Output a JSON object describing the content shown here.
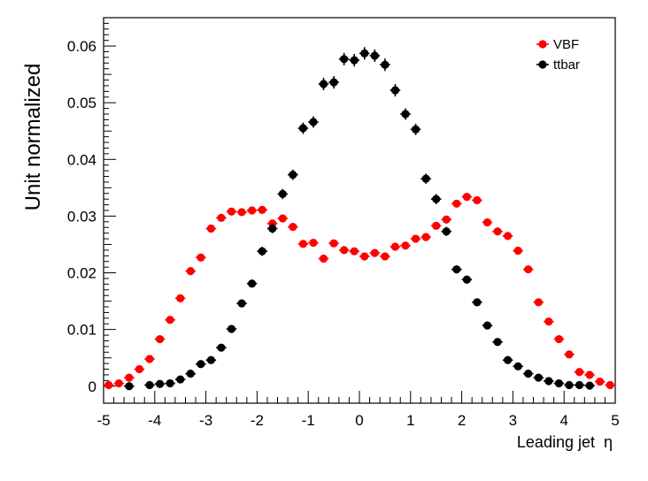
{
  "chart_data": {
    "type": "scatter",
    "xlabel": "Leading jet  η",
    "ylabel": "Unit normalized",
    "xlim": [
      -5,
      5
    ],
    "ylim": [
      -0.003,
      0.065
    ],
    "x_ticks": [
      "-5",
      "-4",
      "-3",
      "-2",
      "-1",
      "0",
      "1",
      "2",
      "3",
      "4",
      "5"
    ],
    "y_ticks": [
      "0",
      "0.01",
      "0.02",
      "0.03",
      "0.04",
      "0.05",
      "0.06"
    ],
    "legend_position": "top-right",
    "series": [
      {
        "name": "VBF",
        "color": "#ff0000",
        "x": [
          -4.9,
          -4.7,
          -4.5,
          -4.3,
          -4.1,
          -3.9,
          -3.7,
          -3.5,
          -3.3,
          -3.1,
          -2.9,
          -2.7,
          -2.5,
          -2.3,
          -2.1,
          -1.9,
          -1.7,
          -1.5,
          -1.3,
          -1.1,
          -0.9,
          -0.7,
          -0.5,
          -0.3,
          -0.1,
          0.1,
          0.3,
          0.5,
          0.7,
          0.9,
          1.1,
          1.3,
          1.5,
          1.7,
          1.9,
          2.1,
          2.3,
          2.5,
          2.7,
          2.9,
          3.1,
          3.3,
          3.5,
          3.7,
          3.9,
          4.1,
          4.3,
          4.5,
          4.7,
          4.9
        ],
        "y": [
          0.0002,
          0.0005,
          0.0015,
          0.003,
          0.0048,
          0.0083,
          0.0117,
          0.0155,
          0.0203,
          0.0227,
          0.0278,
          0.0297,
          0.0308,
          0.0307,
          0.031,
          0.0311,
          0.0287,
          0.0296,
          0.0281,
          0.0251,
          0.0253,
          0.0225,
          0.0252,
          0.024,
          0.0238,
          0.0229,
          0.0235,
          0.0229,
          0.0246,
          0.0248,
          0.026,
          0.0263,
          0.0283,
          0.0294,
          0.0322,
          0.0334,
          0.0328,
          0.0289,
          0.0273,
          0.0265,
          0.0239,
          0.0206,
          0.0148,
          0.0114,
          0.0083,
          0.0056,
          0.0025,
          0.002,
          0.0008,
          0.0002
        ],
        "yerr": [
          0.0001,
          0.0002,
          0.0003,
          0.0004,
          0.0004,
          0.0004,
          0.0004,
          0.0004,
          0.0004,
          0.0004,
          0.0005,
          0.0005,
          0.0005,
          0.0005,
          0.0005,
          0.0005,
          0.0005,
          0.0005,
          0.0005,
          0.0005,
          0.0005,
          0.0005,
          0.0005,
          0.0005,
          0.0005,
          0.0005,
          0.0005,
          0.0005,
          0.0005,
          0.0005,
          0.0005,
          0.0005,
          0.0005,
          0.0005,
          0.0005,
          0.0005,
          0.0005,
          0.0005,
          0.0005,
          0.0005,
          0.0005,
          0.0004,
          0.0004,
          0.0004,
          0.0004,
          0.0004,
          0.0003,
          0.0003,
          0.0002,
          0.0001
        ]
      },
      {
        "name": "ttbar",
        "color": "#000000",
        "x": [
          -4.5,
          -4.1,
          -3.9,
          -3.7,
          -3.5,
          -3.3,
          -3.1,
          -2.9,
          -2.7,
          -2.5,
          -2.3,
          -2.1,
          -1.9,
          -1.7,
          -1.5,
          -1.3,
          -1.1,
          -0.9,
          -0.7,
          -0.5,
          -0.3,
          -0.1,
          0.1,
          0.3,
          0.5,
          0.7,
          0.9,
          1.1,
          1.3,
          1.5,
          1.7,
          1.9,
          2.1,
          2.3,
          2.5,
          2.7,
          2.9,
          3.1,
          3.3,
          3.5,
          3.7,
          3.9,
          4.1,
          4.3,
          4.5
        ],
        "y": [
          0.0,
          0.0002,
          0.0004,
          0.0005,
          0.0012,
          0.0022,
          0.0039,
          0.0046,
          0.0068,
          0.0101,
          0.0146,
          0.0181,
          0.0238,
          0.0278,
          0.0339,
          0.0373,
          0.0455,
          0.0466,
          0.0533,
          0.0536,
          0.0577,
          0.0575,
          0.0587,
          0.0583,
          0.0567,
          0.0522,
          0.048,
          0.0453,
          0.0366,
          0.033,
          0.0273,
          0.0206,
          0.0188,
          0.0148,
          0.0107,
          0.0078,
          0.0046,
          0.0035,
          0.0022,
          0.0015,
          0.0009,
          0.0005,
          0.0002,
          0.0002,
          0.0001
        ],
        "yerr": [
          0.0002,
          0.0002,
          0.0003,
          0.0003,
          0.0004,
          0.0004,
          0.0005,
          0.0005,
          0.0006,
          0.0006,
          0.0006,
          0.0007,
          0.0008,
          0.0008,
          0.0009,
          0.0009,
          0.001,
          0.001,
          0.0011,
          0.0011,
          0.0011,
          0.0011,
          0.0011,
          0.0011,
          0.0011,
          0.0011,
          0.001,
          0.001,
          0.0009,
          0.0009,
          0.0008,
          0.0007,
          0.0007,
          0.0006,
          0.0006,
          0.0005,
          0.0005,
          0.0004,
          0.0004,
          0.0003,
          0.0003,
          0.0002,
          0.0002,
          0.0002,
          0.0002
        ]
      }
    ]
  }
}
